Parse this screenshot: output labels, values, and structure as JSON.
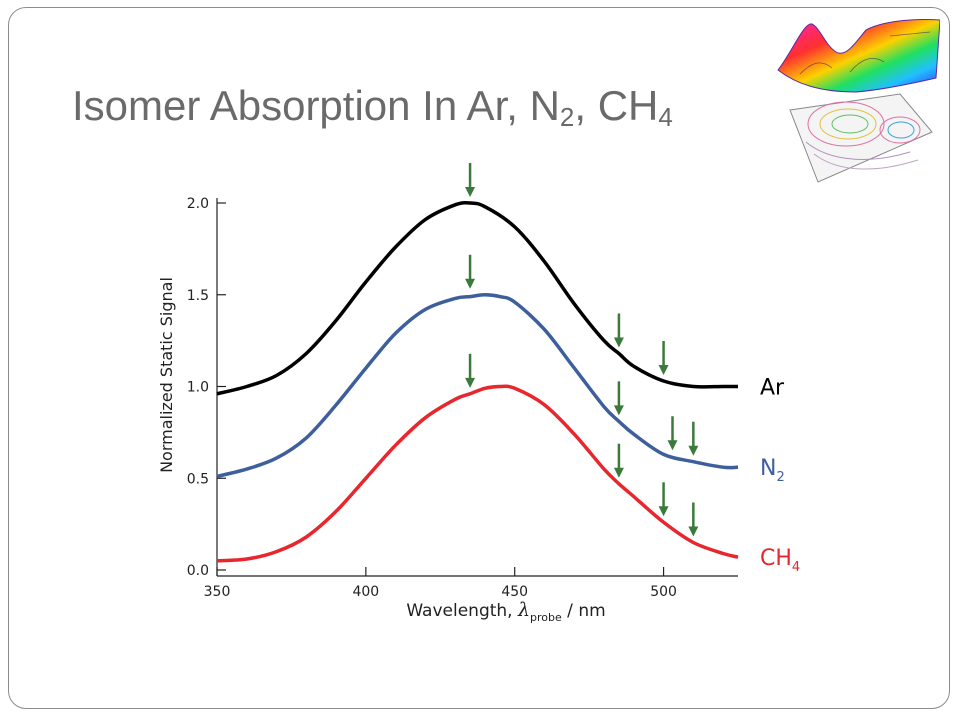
{
  "slide": {
    "title_main": "Isomer Absorption In Ar, N",
    "title_sub1": "2",
    "title_mid": ", CH",
    "title_sub2": "4"
  },
  "decoration": {
    "icon": "surface-and-contour-plot-icon"
  },
  "chart_data": {
    "type": "line",
    "xlabel_main": "Wavelength, ",
    "xlabel_symbol": "λ",
    "xlabel_sub": "probe",
    "xlabel_unit": " / nm",
    "ylabel": "Normalized Static Signal",
    "xlim": [
      350,
      525
    ],
    "ylim": [
      0,
      2.0
    ],
    "xticks": [
      350,
      400,
      450,
      500
    ],
    "xtick_labels": [
      "350",
      "400",
      "450",
      "500"
    ],
    "yticks": [
      0,
      0.5,
      1.0,
      1.5,
      2.0
    ],
    "ytick_labels": [
      "0.0",
      "0.5",
      "1.0",
      "1.5",
      "2.0"
    ],
    "grid": false,
    "series": [
      {
        "name": "Ar",
        "name_sub": "",
        "color": "#000000",
        "x": [
          350,
          360,
          370,
          380,
          390,
          400,
          410,
          420,
          430,
          435,
          440,
          450,
          460,
          470,
          480,
          485,
          490,
          500,
          510,
          520,
          525
        ],
        "y": [
          0.96,
          1.0,
          1.06,
          1.18,
          1.36,
          1.57,
          1.76,
          1.91,
          1.99,
          2.0,
          1.98,
          1.87,
          1.68,
          1.45,
          1.25,
          1.18,
          1.11,
          1.03,
          1.0,
          1.0,
          1.0
        ]
      },
      {
        "name": "N",
        "name_sub": "2",
        "color": "#3d5f9c",
        "x": [
          350,
          360,
          370,
          380,
          390,
          400,
          410,
          420,
          430,
          435,
          440,
          445,
          450,
          460,
          470,
          480,
          485,
          490,
          500,
          510,
          520,
          525
        ],
        "y": [
          0.51,
          0.55,
          0.61,
          0.72,
          0.9,
          1.1,
          1.29,
          1.42,
          1.48,
          1.49,
          1.5,
          1.49,
          1.46,
          1.31,
          1.1,
          0.89,
          0.81,
          0.74,
          0.63,
          0.59,
          0.56,
          0.56
        ]
      },
      {
        "name": "CH",
        "name_sub": "4",
        "color": "#e8262d",
        "x": [
          350,
          360,
          370,
          380,
          390,
          400,
          410,
          420,
          430,
          435,
          440,
          445,
          450,
          460,
          470,
          480,
          485,
          490,
          500,
          510,
          520,
          525
        ],
        "y": [
          0.05,
          0.06,
          0.1,
          0.18,
          0.32,
          0.5,
          0.68,
          0.83,
          0.93,
          0.96,
          0.99,
          1.0,
          0.99,
          0.9,
          0.74,
          0.55,
          0.47,
          0.4,
          0.26,
          0.15,
          0.09,
          0.07
        ]
      }
    ],
    "arrows": [
      {
        "x": 435,
        "y": 2.0
      },
      {
        "x": 435,
        "y": 1.5
      },
      {
        "x": 485,
        "y": 1.18
      },
      {
        "x": 500,
        "y": 1.03
      },
      {
        "x": 435,
        "y": 0.96
      },
      {
        "x": 485,
        "y": 0.81
      },
      {
        "x": 503,
        "y": 0.62
      },
      {
        "x": 510,
        "y": 0.59
      },
      {
        "x": 485,
        "y": 0.47
      },
      {
        "x": 500,
        "y": 0.26
      },
      {
        "x": 510,
        "y": 0.15
      }
    ],
    "arrow_color": "#3b7a3b"
  }
}
